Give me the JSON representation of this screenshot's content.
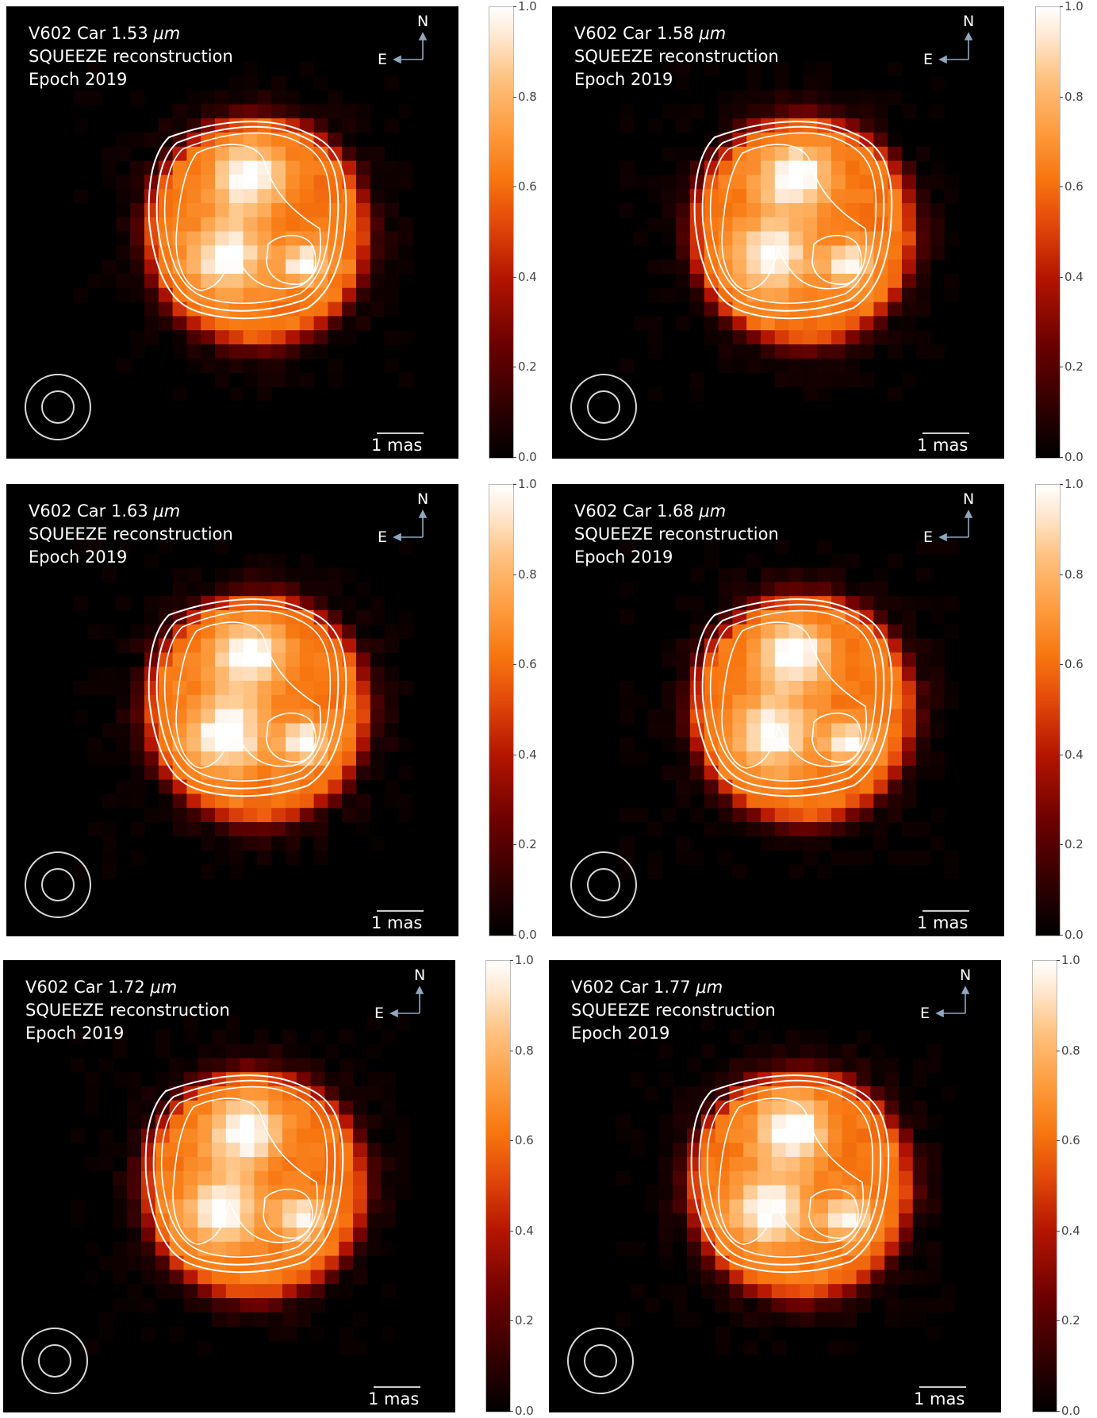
{
  "panels": [
    {
      "object": "V602 Car",
      "wavelength": "1.53",
      "unit": "μm",
      "method": "SQUEEZE reconstruction",
      "epoch": "Epoch 2019"
    },
    {
      "object": "V602 Car",
      "wavelength": "1.58",
      "unit": "μm",
      "method": "SQUEEZE reconstruction",
      "epoch": "Epoch 2019"
    },
    {
      "object": "V602 Car",
      "wavelength": "1.63",
      "unit": "μm",
      "method": "SQUEEZE reconstruction",
      "epoch": "Epoch 2019"
    },
    {
      "object": "V602 Car",
      "wavelength": "1.68",
      "unit": "μm",
      "method": "SQUEEZE reconstruction",
      "epoch": "Epoch 2019"
    },
    {
      "object": "V602 Car",
      "wavelength": "1.72",
      "unit": "μm",
      "method": "SQUEEZE reconstruction",
      "epoch": "Epoch 2019"
    },
    {
      "object": "V602 Car",
      "wavelength": "1.77",
      "unit": "μm",
      "method": "SQUEEZE reconstruction",
      "epoch": "Epoch 2019"
    }
  ],
  "compass": {
    "north": "N",
    "east": "E"
  },
  "scalebar": {
    "label": "1 mas"
  },
  "colorbar": {
    "ticks": [
      "0.0",
      "0.2",
      "0.4",
      "0.6",
      "0.8",
      "1.0"
    ]
  },
  "colors": {
    "background": "#000000",
    "contour": "#ffffff",
    "arrow": "#8fa8c0"
  }
}
